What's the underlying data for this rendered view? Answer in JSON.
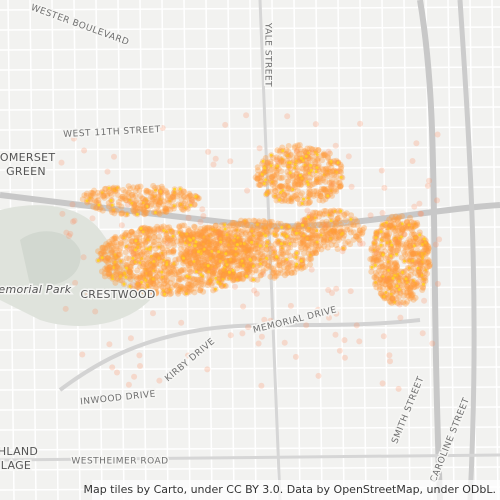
{
  "map": {
    "labels": [
      {
        "text": "WESTER BOULEVARD"
      },
      {
        "text": "YALE STREET"
      },
      {
        "text": "WEST 11TH STREET"
      },
      {
        "text": "SOMERSET"
      },
      {
        "text": "GREEN"
      },
      {
        "text": "Memorial Park"
      },
      {
        "text": "CRESTWOOD"
      },
      {
        "text": "MEMORIAL DRIVE"
      },
      {
        "text": "KIRBY DRIVE"
      },
      {
        "text": "INWOOD DRIVE"
      },
      {
        "text": "WESTHEIMER ROAD"
      },
      {
        "text": "HLAND"
      },
      {
        "text": "LAGE"
      },
      {
        "text": "SMITH STREET"
      },
      {
        "text": "CAROLINE STREET"
      }
    ],
    "attribution": "Map tiles by Carto, under CC BY 3.0. Data by OpenStreetMap, under ODbL."
  }
}
